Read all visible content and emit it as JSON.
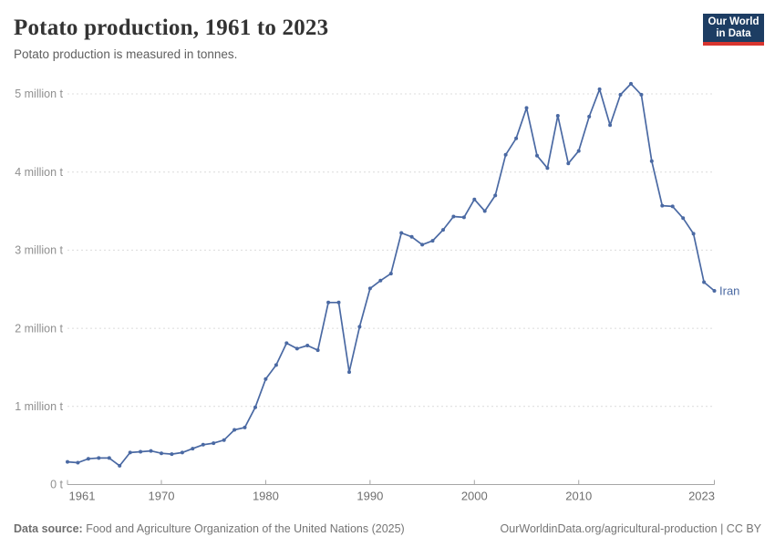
{
  "header": {
    "title": "Potato production, 1961 to 2023",
    "subtitle": "Potato production is measured in tonnes.",
    "logo": {
      "line1": "Our World",
      "line2": "in Data"
    }
  },
  "footer": {
    "source_label": "Data source:",
    "source_text": " Food and Agriculture Organization of the United Nations (2025)",
    "link_text": "OurWorldinData.org/agricultural-production | CC BY"
  },
  "colors": {
    "accent_line": "#4a69a3",
    "navy": "#1d3d63",
    "logo_red": "#d8352f",
    "gridline": "#dcdcdc",
    "axis": "#a6a6a6",
    "y_tick_label": "#909090",
    "x_tick_label": "#6f6f6f"
  },
  "chart_data": {
    "type": "line",
    "title": "Potato production, 1961 to 2023",
    "xlabel": "",
    "ylabel": "",
    "unit": "tonnes",
    "xlim": [
      1961,
      2023
    ],
    "ylim": [
      0,
      5400000
    ],
    "grid": true,
    "legend_position": "end-of-line",
    "x_ticks": [
      1961,
      1970,
      1980,
      1990,
      2000,
      2010,
      2023
    ],
    "y_ticks": [
      {
        "value": 0,
        "label": "0 t"
      },
      {
        "value": 1000000,
        "label": "1 million t"
      },
      {
        "value": 2000000,
        "label": "2 million t"
      },
      {
        "value": 3000000,
        "label": "3 million t"
      },
      {
        "value": 4000000,
        "label": "4 million t"
      },
      {
        "value": 5000000,
        "label": "5 million t"
      }
    ],
    "series": [
      {
        "name": "Iran",
        "color": "#4a69a3",
        "x": [
          1961,
          1962,
          1963,
          1964,
          1965,
          1966,
          1967,
          1968,
          1969,
          1970,
          1971,
          1972,
          1973,
          1974,
          1975,
          1976,
          1977,
          1978,
          1979,
          1980,
          1981,
          1982,
          1983,
          1984,
          1985,
          1986,
          1987,
          1988,
          1989,
          1990,
          1991,
          1992,
          1993,
          1994,
          1995,
          1996,
          1997,
          1998,
          1999,
          2000,
          2001,
          2002,
          2003,
          2004,
          2005,
          2006,
          2007,
          2008,
          2009,
          2010,
          2011,
          2012,
          2013,
          2014,
          2015,
          2016,
          2017,
          2018,
          2019,
          2020,
          2021,
          2022,
          2023
        ],
        "values": [
          290000,
          280000,
          330000,
          340000,
          340000,
          240000,
          410000,
          420000,
          430000,
          400000,
          390000,
          410000,
          460000,
          510000,
          530000,
          570000,
          700000,
          730000,
          990000,
          1350000,
          1530000,
          1810000,
          1740000,
          1780000,
          1720000,
          2330000,
          2330000,
          1440000,
          2020000,
          2510000,
          2610000,
          2700000,
          3220000,
          3170000,
          3070000,
          3120000,
          3260000,
          3430000,
          3420000,
          3650000,
          3500000,
          3700000,
          4220000,
          4430000,
          4820000,
          4210000,
          4050000,
          4720000,
          4110000,
          4270000,
          4710000,
          5060000,
          4600000,
          4990000,
          5130000,
          4990000,
          4140000,
          3570000,
          3560000,
          3410000,
          3210000,
          2590000,
          2480000
        ]
      }
    ]
  }
}
